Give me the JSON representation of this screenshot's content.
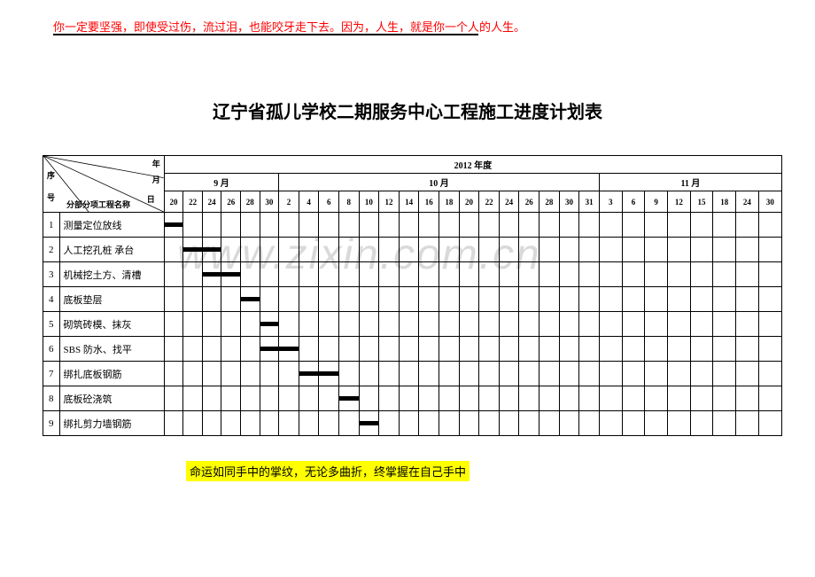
{
  "header_quote": "你一定要坚强，即使受过伤，流过泪，也能咬牙走下去。因为，人生，就是你一个人的人生。",
  "title": "辽宁省孤儿学校二期服务中心工程施工进度计划表",
  "footer_quote": "命运如同手中的掌纹，无论多曲折，终掌握在自己手中",
  "watermark_text": "www.zixin.com.cn",
  "table": {
    "year_label": "2012 年度",
    "corner": {
      "top": "年",
      "mid": "月",
      "bottom": "日",
      "left_top": "序",
      "left_bottom": "号",
      "name_header": "分部分项工程名称"
    },
    "months": [
      "9 月",
      "10 月",
      "11 月"
    ],
    "days_sep": [
      20,
      22,
      24,
      26,
      28,
      30
    ],
    "days_oct": [
      2,
      4,
      6,
      8,
      10,
      12,
      14,
      16,
      18,
      20,
      22,
      24,
      26,
      28,
      30,
      31
    ],
    "days_nov": [
      3,
      6,
      9,
      12,
      15,
      18,
      24,
      30
    ],
    "rows": [
      {
        "n": 1,
        "name": "测量定位放线",
        "start": 0,
        "span": 1
      },
      {
        "n": 2,
        "name": "人工挖孔桩 承台",
        "start": 1,
        "span": 2
      },
      {
        "n": 3,
        "name": "机械挖土方、清槽",
        "start": 2,
        "span": 2
      },
      {
        "n": 4,
        "name": "底板垫层",
        "start": 4,
        "span": 1
      },
      {
        "n": 5,
        "name": "砌筑砖模、抹灰",
        "start": 5,
        "span": 1
      },
      {
        "n": 6,
        "name": "SBS 防水、找平",
        "start": 5,
        "span": 2
      },
      {
        "n": 7,
        "name": "绑扎底板钢筋",
        "start": 7,
        "span": 2
      },
      {
        "n": 8,
        "name": "底板砼浇筑",
        "start": 9,
        "span": 1
      },
      {
        "n": 9,
        "name": "绑扎剪力墙钢筋",
        "start": 10,
        "span": 1
      }
    ]
  },
  "style": {
    "header_color": "#ff0000",
    "highlight_bg": "#ffff00",
    "bar_color": "#000000"
  }
}
